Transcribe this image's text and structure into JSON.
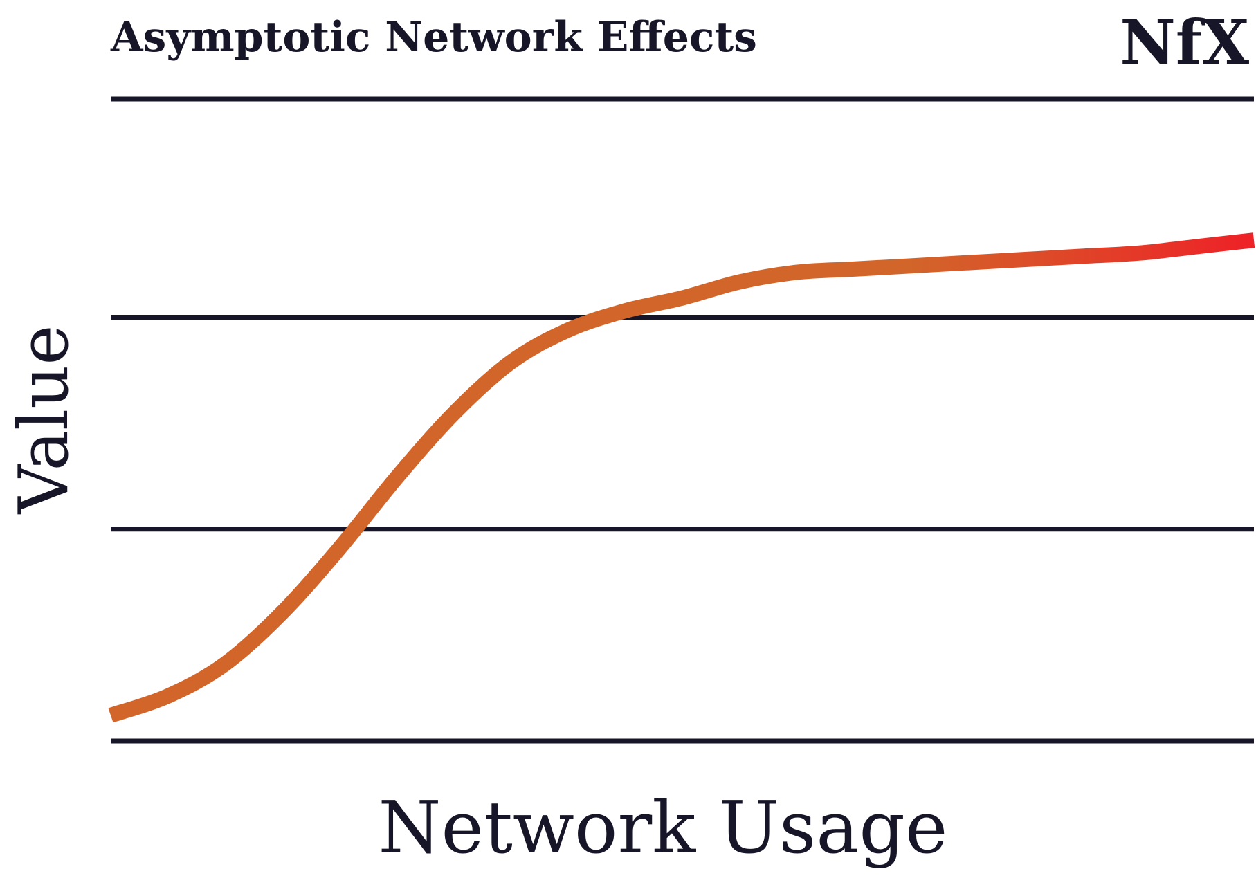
{
  "chart_data": {
    "type": "line",
    "title": "Asymptotic Network Effects",
    "xlabel": "Network Usage",
    "ylabel": "Value",
    "logo": "NfX",
    "grid": true,
    "tick_labels": false,
    "xlim": [
      0,
      1
    ],
    "ylim": [
      0,
      1
    ],
    "gridline_values": [
      0,
      0.33,
      0.66,
      1.0
    ],
    "x": [
      0,
      0.05,
      0.1,
      0.15,
      0.2,
      0.25,
      0.3,
      0.35,
      0.4,
      0.45,
      0.5,
      0.55,
      0.6,
      0.65,
      0.7,
      0.75,
      0.8,
      0.85,
      0.9,
      0.95,
      1.0
    ],
    "y": [
      0.04,
      0.07,
      0.12,
      0.2,
      0.3,
      0.41,
      0.51,
      0.59,
      0.64,
      0.67,
      0.69,
      0.715,
      0.73,
      0.735,
      0.74,
      0.745,
      0.75,
      0.755,
      0.76,
      0.77,
      0.78
    ],
    "colors": {
      "curve_start": "#d2652a",
      "curve_end": "#ee2127",
      "gridline": "#161628",
      "text": "#161628"
    }
  }
}
